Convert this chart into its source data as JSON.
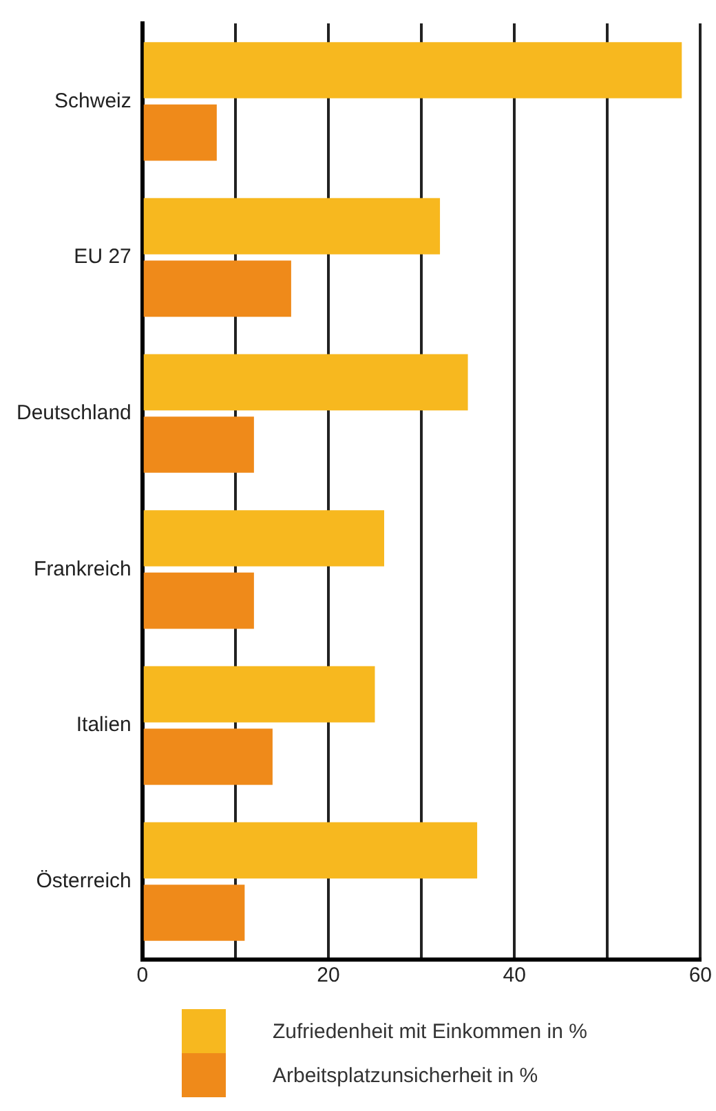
{
  "chart_data": {
    "type": "bar",
    "orientation": "horizontal",
    "categories": [
      "Schweiz",
      "EU 27",
      "Deutschland",
      "Frankreich",
      "Italien",
      "Österreich"
    ],
    "series": [
      {
        "name": "Zufriedenheit mit Einkommen in %",
        "color": "#f7b81f",
        "values": [
          58,
          32,
          35,
          26,
          25,
          36
        ]
      },
      {
        "name": "Arbeitsplatzunsicherheit in %",
        "color": "#ef8a1a",
        "values": [
          8,
          16,
          12,
          12,
          14,
          11
        ]
      }
    ],
    "xlim": [
      0,
      60
    ],
    "xticks": [
      0,
      {
        "value": 10,
        "label": null
      },
      20,
      {
        "value": 30,
        "label": null
      },
      40,
      {
        "value": 50,
        "label": null
      },
      60
    ],
    "grid": "x",
    "legend": "bottom"
  }
}
